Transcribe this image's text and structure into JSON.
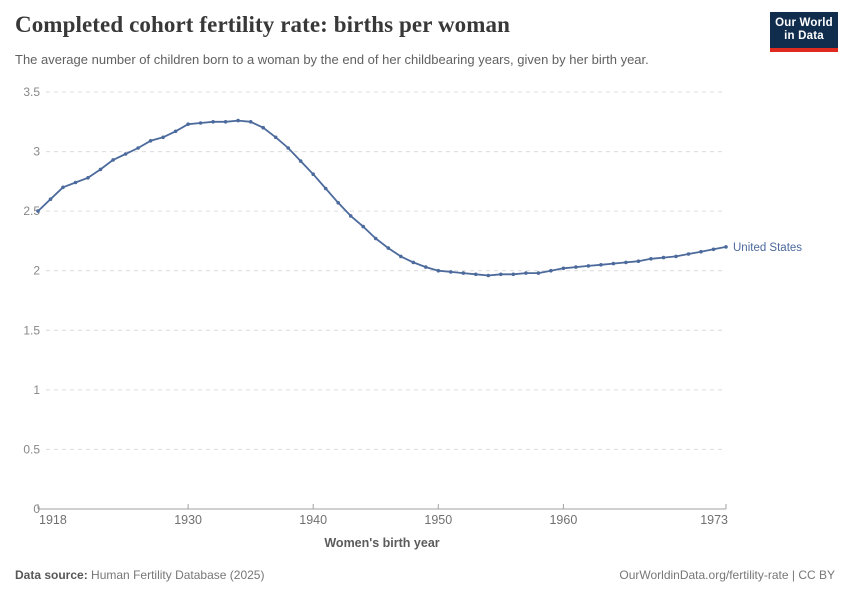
{
  "chart_data": {
    "type": "line",
    "title": "Completed cohort fertility rate: births per woman",
    "subtitle": "The average number of children born to a woman by the end of her childbearing years, given by her birth year.",
    "xlabel": "Women's birth year",
    "ylabel": "",
    "xlim": [
      1918,
      1973
    ],
    "ylim": [
      0,
      3.5
    ],
    "xticks": [
      1918,
      1930,
      1940,
      1950,
      1960,
      1973
    ],
    "yticks": [
      0,
      0.5,
      1,
      1.5,
      2,
      2.5,
      3,
      3.5
    ],
    "grid": "horizontal-dashed",
    "legend_position": "end-of-line-label",
    "x": [
      1918,
      1919,
      1920,
      1921,
      1922,
      1923,
      1924,
      1925,
      1926,
      1927,
      1928,
      1929,
      1930,
      1931,
      1932,
      1933,
      1934,
      1935,
      1936,
      1937,
      1938,
      1939,
      1940,
      1941,
      1942,
      1943,
      1944,
      1945,
      1946,
      1947,
      1948,
      1949,
      1950,
      1951,
      1952,
      1953,
      1954,
      1955,
      1956,
      1957,
      1958,
      1959,
      1960,
      1961,
      1962,
      1963,
      1964,
      1965,
      1966,
      1967,
      1968,
      1969,
      1970,
      1971,
      1972,
      1973
    ],
    "series": [
      {
        "name": "United States",
        "end_label": "United States",
        "color": "#4C6A9C",
        "values": [
          2.5,
          2.6,
          2.7,
          2.74,
          2.78,
          2.85,
          2.93,
          2.98,
          3.03,
          3.09,
          3.12,
          3.17,
          3.23,
          3.24,
          3.25,
          3.25,
          3.26,
          3.25,
          3.2,
          3.12,
          3.03,
          2.92,
          2.81,
          2.69,
          2.57,
          2.46,
          2.37,
          2.27,
          2.19,
          2.12,
          2.07,
          2.03,
          2.0,
          1.99,
          1.98,
          1.97,
          1.96,
          1.97,
          1.97,
          1.98,
          1.98,
          2.0,
          2.02,
          2.03,
          2.04,
          2.05,
          2.06,
          2.07,
          2.08,
          2.1,
          2.11,
          2.12,
          2.14,
          2.16,
          2.18,
          2.2
        ]
      }
    ]
  },
  "header": {
    "logo": {
      "line1": "Our World",
      "line2": "in Data",
      "bg_color": "#102D4E",
      "accent_color": "#DF2A20"
    }
  },
  "footer": {
    "source_label": "Data source:",
    "source_value": "Human Fertility Database (2025)",
    "credit": "OurWorldinData.org/fertility-rate | CC BY"
  },
  "colors": {
    "series_blue": "#4C6A9C",
    "grid_gray": "#dcdcdc",
    "axis_gray": "#a2a2a2",
    "title_gray": "#383838"
  }
}
